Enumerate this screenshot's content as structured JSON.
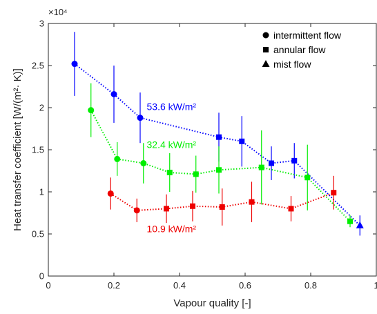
{
  "chart_data": {
    "type": "scatter",
    "xlabel": "Vapour quality [-]",
    "ylabel": "Heat transfer coefficient [W/(m²· K)]",
    "y_exponent_label": "×10⁴",
    "xlim": [
      0,
      1
    ],
    "ylim": [
      0,
      3
    ],
    "xticks": [
      "0",
      "0.2",
      "0.4",
      "0.6",
      "0.8",
      "1"
    ],
    "yticks": [
      "0",
      "0.5",
      "1",
      "1.5",
      "2",
      "2.5",
      "3"
    ],
    "legend_position": "top-right",
    "legend": [
      {
        "marker": "circle",
        "label": "intermittent flow"
      },
      {
        "marker": "square",
        "label": "annular flow"
      },
      {
        "marker": "triangle",
        "label": "mist flow"
      }
    ],
    "series": [
      {
        "name": "53.6 kW/m²",
        "color": "#0000ff",
        "points": [
          {
            "x": 0.08,
            "y": 2.52,
            "err": 0.38,
            "marker": "circle"
          },
          {
            "x": 0.2,
            "y": 2.16,
            "err": 0.34,
            "marker": "circle"
          },
          {
            "x": 0.28,
            "y": 1.88,
            "err": 0.3,
            "marker": "circle"
          },
          {
            "x": 0.52,
            "y": 1.65,
            "err": 0.29,
            "marker": "square"
          },
          {
            "x": 0.59,
            "y": 1.6,
            "err": 0.3,
            "marker": "square"
          },
          {
            "x": 0.68,
            "y": 1.34,
            "err": 0.2,
            "marker": "square"
          },
          {
            "x": 0.75,
            "y": 1.37,
            "err": 0.21,
            "marker": "square"
          },
          {
            "x": 0.95,
            "y": 0.6,
            "err": 0.12,
            "marker": "triangle"
          }
        ]
      },
      {
        "name": "32.4 kW/m²",
        "color": "#00ee00",
        "points": [
          {
            "x": 0.13,
            "y": 1.97,
            "err": 0.32,
            "marker": "circle"
          },
          {
            "x": 0.21,
            "y": 1.39,
            "err": 0.2,
            "marker": "circle"
          },
          {
            "x": 0.29,
            "y": 1.34,
            "err": 0.24,
            "marker": "circle"
          },
          {
            "x": 0.37,
            "y": 1.23,
            "err": 0.23,
            "marker": "square"
          },
          {
            "x": 0.45,
            "y": 1.21,
            "err": 0.22,
            "marker": "square"
          },
          {
            "x": 0.52,
            "y": 1.26,
            "err": 0.28,
            "marker": "square"
          },
          {
            "x": 0.65,
            "y": 1.29,
            "err": 0.44,
            "marker": "square"
          },
          {
            "x": 0.79,
            "y": 1.17,
            "err": 0.39,
            "marker": "square"
          },
          {
            "x": 0.92,
            "y": 0.65,
            "err": 0.07,
            "marker": "square"
          }
        ]
      },
      {
        "name": "10.9 kW/m²",
        "color": "#ee0000",
        "points": [
          {
            "x": 0.19,
            "y": 0.98,
            "err": 0.19,
            "marker": "circle"
          },
          {
            "x": 0.27,
            "y": 0.78,
            "err": 0.14,
            "marker": "circle"
          },
          {
            "x": 0.36,
            "y": 0.8,
            "err": 0.17,
            "marker": "square"
          },
          {
            "x": 0.44,
            "y": 0.83,
            "err": 0.18,
            "marker": "square"
          },
          {
            "x": 0.53,
            "y": 0.82,
            "err": 0.22,
            "marker": "square"
          },
          {
            "x": 0.62,
            "y": 0.88,
            "err": 0.24,
            "marker": "square"
          },
          {
            "x": 0.74,
            "y": 0.8,
            "err": 0.15,
            "marker": "square"
          },
          {
            "x": 0.87,
            "y": 0.99,
            "err": 0.2,
            "marker": "square"
          }
        ]
      }
    ]
  }
}
